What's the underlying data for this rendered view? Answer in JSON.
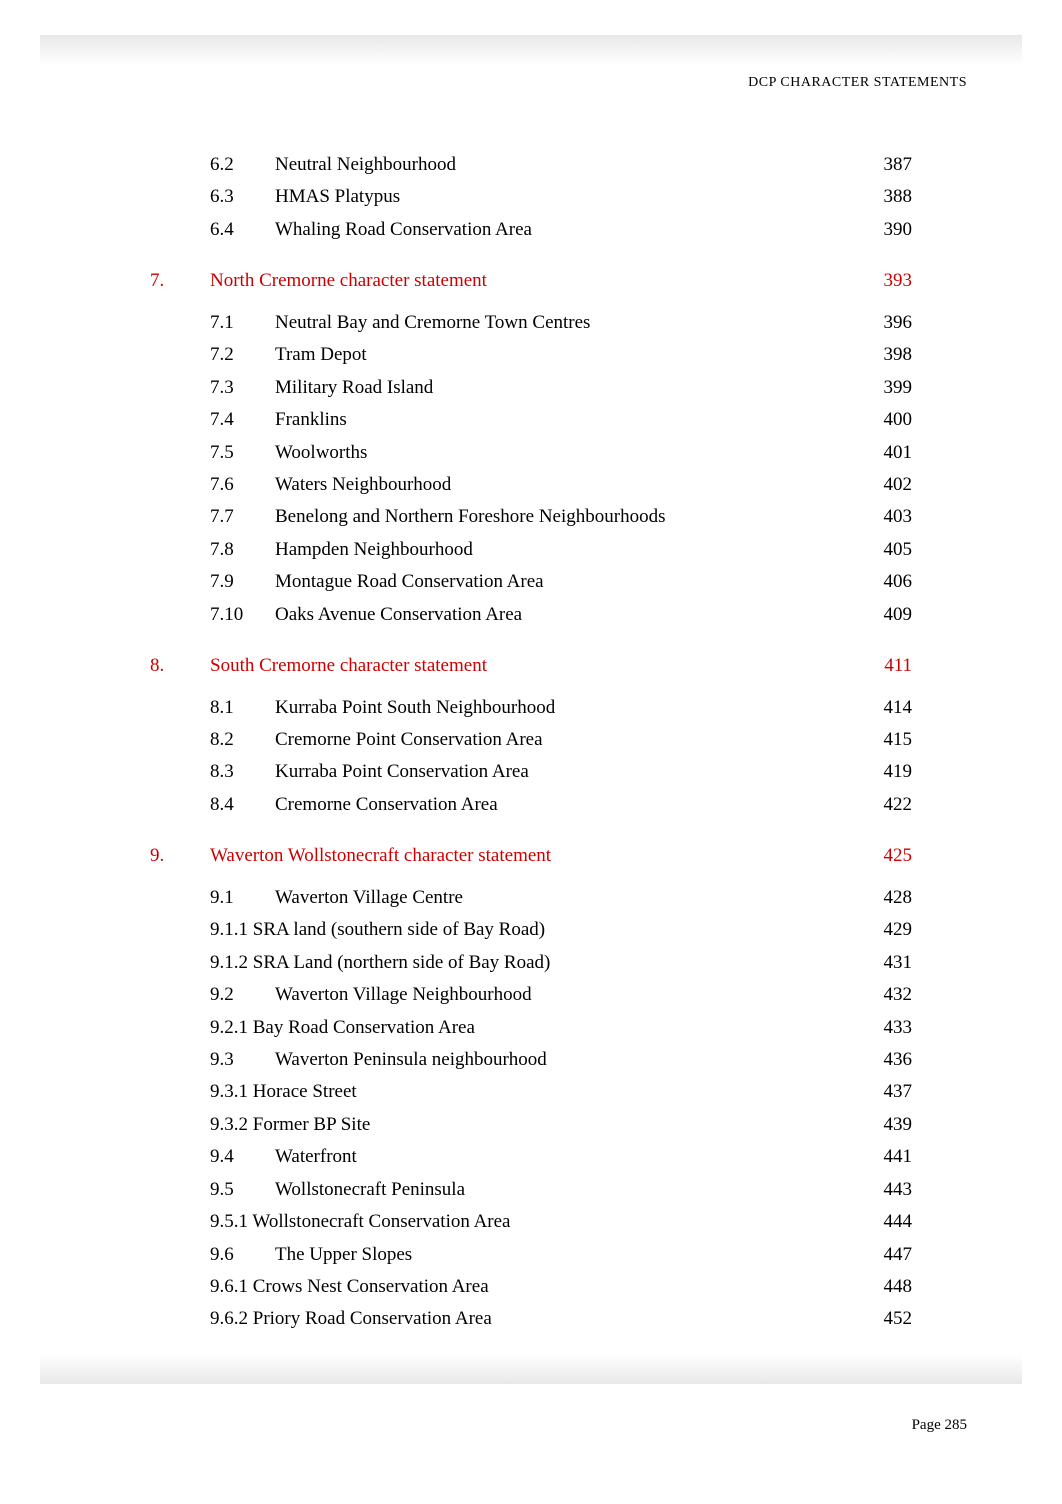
{
  "header": "DCP CHARACTER STATEMENTS",
  "footer": "Page 285",
  "colors": {
    "heading": "#cc0000",
    "text": "#000000",
    "background": "#ffffff",
    "shadow": "#e8e8e8"
  },
  "typography": {
    "body_fontsize_pt": 14,
    "header_fontsize_pt": 10,
    "footer_fontsize_pt": 11,
    "font_family": "Times New Roman"
  },
  "toc": {
    "pre_items": [
      {
        "num": "6.2",
        "title": "Neutral Neighbourhood",
        "page": "387"
      },
      {
        "num": "6.3",
        "title": "HMAS Platypus",
        "page": "388"
      },
      {
        "num": "6.4",
        "title": "Whaling Road Conservation Area",
        "page": "390"
      }
    ],
    "sections": [
      {
        "num": "7.",
        "title": "North Cremorne character statement",
        "page": "393",
        "items": [
          {
            "num": "7.1",
            "title": "Neutral Bay and Cremorne Town Centres",
            "page": "396"
          },
          {
            "num": "7.2",
            "title": "Tram Depot",
            "page": "398"
          },
          {
            "num": "7.3",
            "title": "Military Road Island",
            "page": "399"
          },
          {
            "num": "7.4",
            "title": "Franklins",
            "page": "400"
          },
          {
            "num": "7.5",
            "title": "Woolworths",
            "page": "401"
          },
          {
            "num": "7.6",
            "title": "Waters Neighbourhood",
            "page": "402"
          },
          {
            "num": "7.7",
            "title": "Benelong and Northern Foreshore Neighbourhoods",
            "page": "403"
          },
          {
            "num": "7.8",
            "title": "Hampden Neighbourhood",
            "page": "405"
          },
          {
            "num": "7.9",
            "title": "Montague Road Conservation Area",
            "page": "406"
          },
          {
            "num": "7.10",
            "title": "Oaks Avenue Conservation Area",
            "page": "409"
          }
        ]
      },
      {
        "num": "8.",
        "title": "South Cremorne character statement",
        "page": "411",
        "items": [
          {
            "num": "8.1",
            "title": "Kurraba Point South Neighbourhood",
            "page": "414"
          },
          {
            "num": "8.2",
            "title": "Cremorne Point Conservation Area",
            "page": "415"
          },
          {
            "num": "8.3",
            "title": "Kurraba Point Conservation Area",
            "page": "419"
          },
          {
            "num": "8.4",
            "title": "Cremorne Conservation Area",
            "page": "422"
          }
        ]
      },
      {
        "num": "9.",
        "title": "Waverton Wollstonecraft character statement",
        "page": "425",
        "items": [
          {
            "num": "9.1",
            "title": "Waverton Village Centre",
            "page": "428"
          },
          {
            "num": "9.1.1",
            "title": "SRA land (southern side of Bay Road)",
            "page": "429",
            "inline": true
          },
          {
            "num": "9.1.2",
            "title": "SRA Land (northern side of Bay Road)",
            "page": "431",
            "inline": true
          },
          {
            "num": "9.2",
            "title": "Waverton Village Neighbourhood",
            "page": "432"
          },
          {
            "num": "9.2.1",
            "title": "Bay Road Conservation Area",
            "page": "433",
            "inline": true
          },
          {
            "num": "9.3",
            "title": "Waverton Peninsula neighbourhood",
            "page": "436"
          },
          {
            "num": "9.3.1",
            "title": "Horace Street",
            "page": "437",
            "inline": true
          },
          {
            "num": "9.3.2",
            "title": "Former BP Site",
            "page": "439",
            "inline": true
          },
          {
            "num": "9.4",
            "title": "Waterfront",
            "page": "441"
          },
          {
            "num": "9.5",
            "title": "Wollstonecraft Peninsula",
            "page": "443"
          },
          {
            "num": "9.5.1",
            "title": "Wollstonecraft Conservation Area",
            "page": "444",
            "inline": true
          },
          {
            "num": "9.6",
            "title": "The Upper Slopes",
            "page": "447"
          },
          {
            "num": "9.6.1",
            "title": "Crows Nest Conservation Area",
            "page": "448",
            "inline": true
          },
          {
            "num": "9.6.2",
            "title": "Priory Road Conservation Area",
            "page": "452",
            "inline": true
          }
        ]
      }
    ]
  }
}
